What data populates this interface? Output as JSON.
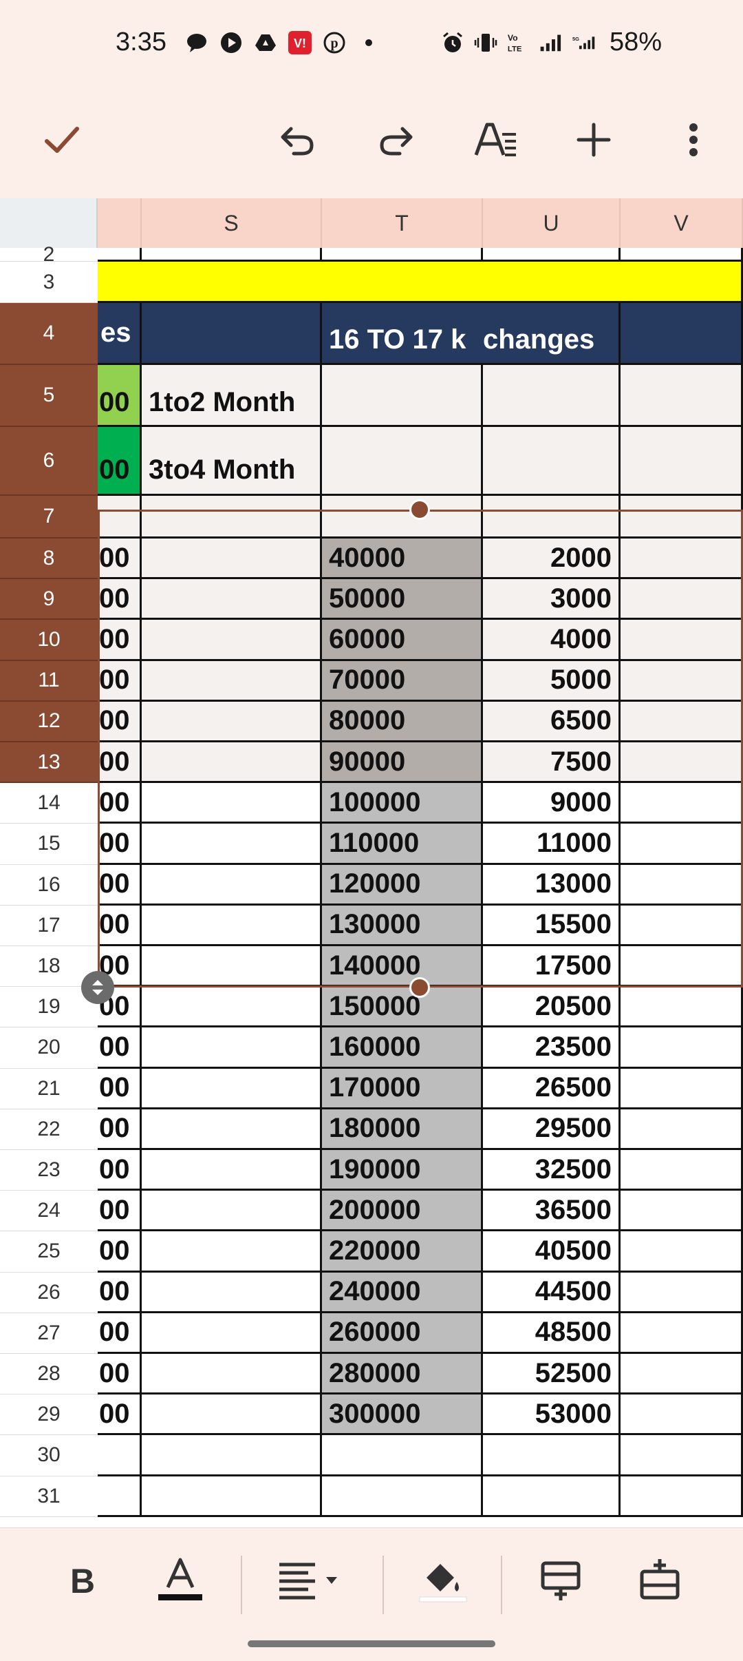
{
  "status_bar": {
    "time": "3:35",
    "battery": "58%"
  },
  "toolbar": {
    "icons": [
      "check-icon",
      "undo-icon",
      "redo-icon",
      "text-format-icon",
      "add-icon",
      "more-vert-icon"
    ]
  },
  "sheet": {
    "columns": [
      "S",
      "T",
      "U",
      "V"
    ],
    "row_numbers": [
      "2",
      "3",
      "4",
      "5",
      "6",
      "7",
      "8",
      "9",
      "10",
      "11",
      "12",
      "13",
      "14",
      "15",
      "16",
      "17",
      "18",
      "19",
      "20",
      "21",
      "22",
      "23",
      "24",
      "25",
      "26",
      "27",
      "28",
      "29",
      "30",
      "31"
    ],
    "header_row4": {
      "r_fragment": "es",
      "t_header": "16 TO 17 k",
      "u_header": "changes"
    },
    "row5": {
      "r_fragment": "00",
      "s_text": "1to2 Month"
    },
    "row6": {
      "r_fragment": "00",
      "s_text": "3to4 Month"
    },
    "data_rows": [
      {
        "row": "8",
        "r": "00",
        "t": "40000",
        "u": "2000"
      },
      {
        "row": "9",
        "r": "00",
        "t": "50000",
        "u": "3000"
      },
      {
        "row": "10",
        "r": "00",
        "t": "60000",
        "u": "4000"
      },
      {
        "row": "11",
        "r": "00",
        "t": "70000",
        "u": "5000"
      },
      {
        "row": "12",
        "r": "00",
        "t": "80000",
        "u": "6500"
      },
      {
        "row": "13",
        "r": "00",
        "t": "90000",
        "u": "7500"
      },
      {
        "row": "14",
        "r": "00",
        "t": "100000",
        "u": "9000"
      },
      {
        "row": "15",
        "r": "00",
        "t": "110000",
        "u": "11000"
      },
      {
        "row": "16",
        "r": "00",
        "t": "120000",
        "u": "13000"
      },
      {
        "row": "17",
        "r": "00",
        "t": "130000",
        "u": "15500"
      },
      {
        "row": "18",
        "r": "00",
        "t": "140000",
        "u": "17500"
      },
      {
        "row": "19",
        "r": "00",
        "t": "150000",
        "u": "20500"
      },
      {
        "row": "20",
        "r": "00",
        "t": "160000",
        "u": "23500"
      },
      {
        "row": "21",
        "r": "00",
        "t": "170000",
        "u": "26500"
      },
      {
        "row": "22",
        "r": "00",
        "t": "180000",
        "u": "29500"
      },
      {
        "row": "23",
        "r": "00",
        "t": "190000",
        "u": "32500"
      },
      {
        "row": "24",
        "r": "00",
        "t": "200000",
        "u": "36500"
      },
      {
        "row": "25",
        "r": "00",
        "t": "220000",
        "u": "40500"
      },
      {
        "row": "26",
        "r": "00",
        "t": "240000",
        "u": "44500"
      },
      {
        "row": "27",
        "r": "00",
        "t": "260000",
        "u": "48500"
      },
      {
        "row": "28",
        "r": "00",
        "t": "280000",
        "u": "52500"
      },
      {
        "row": "29",
        "r": "00",
        "t": "300000",
        "u": "53000"
      }
    ],
    "colors": {
      "selection": "#8b4a32",
      "header_fill": "#253a5e",
      "yellow_fill": "#ffff00",
      "green_light": "#92d050",
      "green_dark": "#00b050"
    }
  },
  "format_bar": {
    "icons": [
      "bold-icon",
      "text-color-icon",
      "align-left-icon",
      "fill-color-icon",
      "insert-row-above-icon",
      "insert-row-below-icon"
    ]
  }
}
